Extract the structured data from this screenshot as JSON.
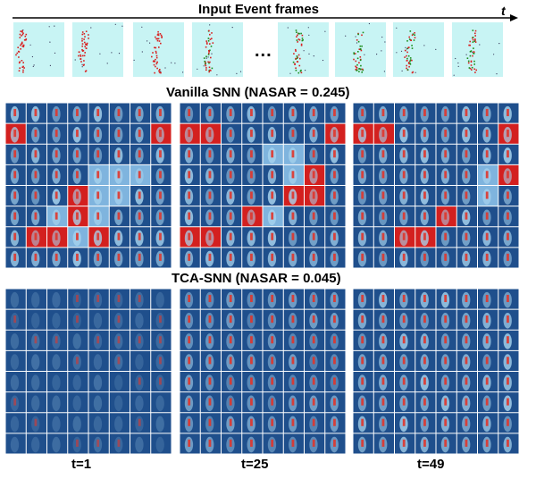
{
  "header": {
    "title": "Input Event frames",
    "time_label": "t",
    "ellipsis": "..."
  },
  "vanilla": {
    "title": "Vanilla SNN (NASAR = 0.245)",
    "nasar": 0.245
  },
  "tca": {
    "title": "TCA-SNN (NASAR = 0.045)",
    "nasar": 0.045
  },
  "timestep_labels": [
    "t=1",
    "t=25",
    "t=49"
  ],
  "colors": {
    "frame_bg": "#c8f4f4",
    "event_red": "#d92020",
    "event_green": "#1a8c1a",
    "map_dark": "#1f4f8c",
    "map_light": "#a8d4ee",
    "map_hot": "#d3201f",
    "figure_red": "#e0352b"
  },
  "event_frames": [
    {
      "index": 1,
      "green": false
    },
    {
      "index": 2,
      "green": false
    },
    {
      "index": 3,
      "green": false
    },
    {
      "index": 4,
      "green": true
    },
    {
      "index": 5,
      "green": true
    },
    {
      "index": 6,
      "green": true
    },
    {
      "index": 7,
      "green": true
    },
    {
      "index": 8,
      "green": true
    }
  ],
  "attention_grids": {
    "vanilla": [
      {
        "timestep": 1,
        "hot": [
          [
            1,
            0
          ],
          [
            1,
            7
          ],
          [
            4,
            3
          ],
          [
            5,
            3
          ],
          [
            6,
            1
          ],
          [
            6,
            2
          ],
          [
            6,
            4
          ]
        ],
        "warm": [
          [
            3,
            4
          ],
          [
            3,
            5
          ],
          [
            3,
            6
          ],
          [
            4,
            4
          ],
          [
            4,
            5
          ],
          [
            5,
            2
          ],
          [
            5,
            4
          ],
          [
            6,
            3
          ]
        ]
      },
      {
        "timestep": 25,
        "hot": [
          [
            1,
            0
          ],
          [
            1,
            1
          ],
          [
            1,
            7
          ],
          [
            3,
            6
          ],
          [
            4,
            5
          ],
          [
            4,
            6
          ],
          [
            5,
            3
          ],
          [
            6,
            0
          ],
          [
            6,
            1
          ]
        ],
        "warm": [
          [
            2,
            4
          ],
          [
            2,
            5
          ],
          [
            3,
            5
          ],
          [
            5,
            4
          ]
        ]
      },
      {
        "timestep": 49,
        "hot": [
          [
            1,
            0
          ],
          [
            1,
            1
          ],
          [
            1,
            7
          ],
          [
            3,
            7
          ],
          [
            5,
            4
          ],
          [
            6,
            2
          ],
          [
            6,
            3
          ]
        ],
        "warm": [
          [
            3,
            6
          ],
          [
            4,
            6
          ]
        ]
      }
    ],
    "tca": [
      {
        "timestep": 1,
        "hot": [],
        "warm": []
      },
      {
        "timestep": 25,
        "hot": [],
        "warm": []
      },
      {
        "timestep": 49,
        "hot": [],
        "warm": []
      }
    ]
  }
}
